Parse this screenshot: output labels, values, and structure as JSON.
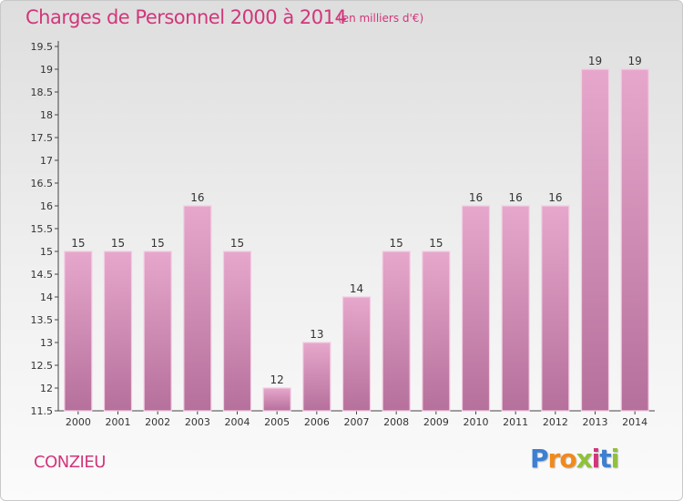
{
  "title": "Charges de Personnel 2000 à 2014",
  "subtitle": "(en milliers d'€)",
  "city": "CONZIEU",
  "logo": {
    "text": "Proxiti",
    "letter_colors": [
      "#3d7fd1",
      "#f08a1c",
      "#f08a1c",
      "#8fc23a",
      "#d2367b",
      "#3d7fd1",
      "#8fc23a"
    ]
  },
  "colors": {
    "title": "#d2367b",
    "bar_top": "#e7a7cc",
    "bar_bottom": "#b5709b",
    "bar_edge": "#f2cde2"
  },
  "chart_data": {
    "type": "bar",
    "categories": [
      "2000",
      "2001",
      "2002",
      "2003",
      "2004",
      "2005",
      "2006",
      "2007",
      "2008",
      "2009",
      "2010",
      "2011",
      "2012",
      "2013",
      "2014"
    ],
    "values": [
      15,
      15,
      15,
      16,
      15,
      12,
      13,
      14,
      15,
      15,
      16,
      16,
      16,
      19,
      19
    ],
    "ylim": [
      11.5,
      19.5
    ],
    "yticks": [
      "11.5",
      "12",
      "12.5",
      "13",
      "13.5",
      "14",
      "14.5",
      "15",
      "15.5",
      "16",
      "16.5",
      "17",
      "17.5",
      "18",
      "18.5",
      "19",
      "19.5"
    ],
    "grid": false
  }
}
